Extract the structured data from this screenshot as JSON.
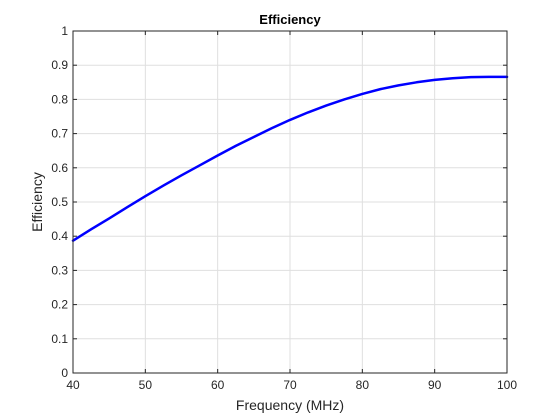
{
  "chart_data": {
    "type": "line",
    "title": "Efficiency",
    "xlabel": "Frequency (MHz)",
    "ylabel": "Efficiency",
    "xlim": [
      40,
      100
    ],
    "ylim": [
      0,
      1
    ],
    "xticks": [
      40,
      50,
      60,
      70,
      80,
      90,
      100
    ],
    "yticks": [
      0,
      0.1,
      0.2,
      0.3,
      0.4,
      0.5,
      0.6,
      0.7,
      0.8,
      0.9,
      1
    ],
    "grid": true,
    "series": [
      {
        "color": "#0000ff",
        "x": [
          40,
          42.5,
          45,
          47.5,
          50,
          52.5,
          55,
          57.5,
          60,
          62.5,
          65,
          67.5,
          70,
          72.5,
          75,
          77.5,
          80,
          82.5,
          85,
          87.5,
          90,
          92.5,
          95,
          97.5,
          100
        ],
        "y": [
          0.387,
          0.42,
          0.452,
          0.485,
          0.517,
          0.548,
          0.578,
          0.607,
          0.636,
          0.664,
          0.69,
          0.716,
          0.74,
          0.762,
          0.782,
          0.8,
          0.816,
          0.83,
          0.841,
          0.85,
          0.857,
          0.862,
          0.865,
          0.866,
          0.866
        ]
      }
    ]
  }
}
